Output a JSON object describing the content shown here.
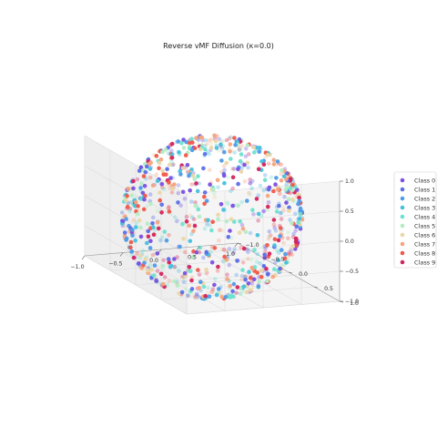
{
  "chart_data": {
    "type": "scatter",
    "projection": "3d",
    "title": "Reverse vMF Diffusion (κ=0.0)",
    "xlabel": "",
    "ylabel": "",
    "zlabel": "",
    "xlim": [
      -1.0,
      1.0
    ],
    "ylim": [
      -1.0,
      1.0
    ],
    "zlim": [
      -1.0,
      1.0
    ],
    "x_ticks": [
      "−1.0",
      "−0.5",
      "0.0",
      "0.5",
      "1.0"
    ],
    "y_ticks": [
      "−1.0",
      "−0.5",
      "0.0",
      "0.5",
      "1.0"
    ],
    "z_ticks": [
      "−1.0",
      "−0.5",
      "0.0",
      "0.5",
      "1.0"
    ],
    "grid": true,
    "legend_position": "right",
    "description": "points uniformly distributed on the unit sphere for 10 classes",
    "points_per_class": 90,
    "series": [
      {
        "name": "Class 0",
        "color": "#7b4fe0"
      },
      {
        "name": "Class 1",
        "color": "#5b6ee8"
      },
      {
        "name": "Class 2",
        "color": "#4f9be8"
      },
      {
        "name": "Class 3",
        "color": "#47c0dd"
      },
      {
        "name": "Class 4",
        "color": "#6ee0d0"
      },
      {
        "name": "Class 5",
        "color": "#b4ecc4"
      },
      {
        "name": "Class 6",
        "color": "#ead7a6"
      },
      {
        "name": "Class 7",
        "color": "#f5a47f"
      },
      {
        "name": "Class 8",
        "color": "#f0584a"
      },
      {
        "name": "Class 9",
        "color": "#d4235c"
      }
    ]
  }
}
